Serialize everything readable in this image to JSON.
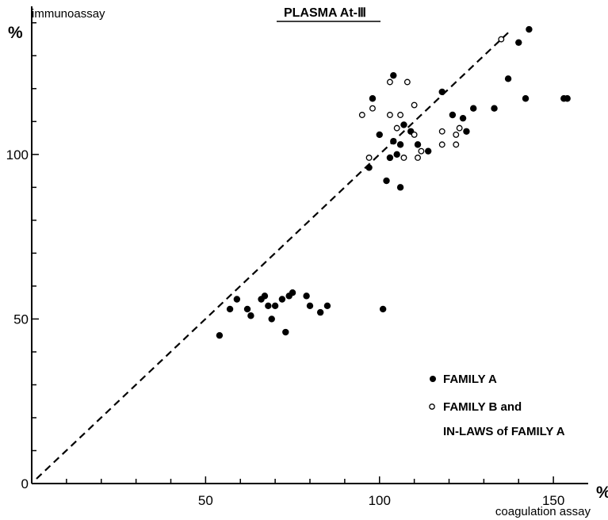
{
  "chart_data": {
    "type": "scatter",
    "title": "PLASMA At-Ⅲ",
    "xlabel": "coagulation assay",
    "ylabel": "immunoassay",
    "x_unit": "%",
    "y_unit": "%",
    "xlim": [
      0,
      160
    ],
    "ylim": [
      0,
      145
    ],
    "x_ticks": [
      "50",
      "100",
      "150"
    ],
    "y_ticks": [
      "0",
      "50",
      "100"
    ],
    "reference_line": {
      "style": "dashed",
      "x": [
        0,
        137
      ],
      "y": [
        0,
        137
      ]
    },
    "series": [
      {
        "name": "FAMILY A",
        "marker": "filled-circle",
        "color": "#000000",
        "points": [
          [
            54,
            45
          ],
          [
            57,
            53
          ],
          [
            59,
            56
          ],
          [
            62,
            53
          ],
          [
            63,
            51
          ],
          [
            66,
            56
          ],
          [
            67,
            57
          ],
          [
            68,
            54
          ],
          [
            69,
            50
          ],
          [
            70,
            54
          ],
          [
            72,
            56
          ],
          [
            73,
            46
          ],
          [
            74,
            57
          ],
          [
            75,
            58
          ],
          [
            79,
            57
          ],
          [
            80,
            54
          ],
          [
            83,
            52
          ],
          [
            85,
            54
          ],
          [
            101,
            53
          ],
          [
            97,
            96
          ],
          [
            98,
            117
          ],
          [
            100,
            106
          ],
          [
            102,
            92
          ],
          [
            103,
            99
          ],
          [
            104,
            104
          ],
          [
            104,
            124
          ],
          [
            105,
            100
          ],
          [
            106,
            103
          ],
          [
            106,
            90
          ],
          [
            107,
            109
          ],
          [
            109,
            107
          ],
          [
            111,
            103
          ],
          [
            114,
            101
          ],
          [
            118,
            119
          ],
          [
            121,
            112
          ],
          [
            124,
            111
          ],
          [
            125,
            107
          ],
          [
            127,
            114
          ],
          [
            133,
            114
          ],
          [
            137,
            123
          ],
          [
            140,
            134
          ],
          [
            142,
            117
          ],
          [
            143,
            138
          ],
          [
            153,
            117
          ],
          [
            154,
            117
          ]
        ]
      },
      {
        "name": "FAMILY B and IN-LAWS of FAMILY A",
        "marker": "open-circle",
        "color": "#000000",
        "points": [
          [
            95,
            112
          ],
          [
            97,
            99
          ],
          [
            98,
            114
          ],
          [
            103,
            112
          ],
          [
            103,
            122
          ],
          [
            105,
            108
          ],
          [
            106,
            112
          ],
          [
            107,
            99
          ],
          [
            108,
            122
          ],
          [
            110,
            106
          ],
          [
            110,
            115
          ],
          [
            111,
            99
          ],
          [
            112,
            101
          ],
          [
            118,
            107
          ],
          [
            118,
            103
          ],
          [
            122,
            103
          ],
          [
            122,
            106
          ],
          [
            123,
            108
          ],
          [
            135,
            135
          ]
        ]
      }
    ],
    "legend": {
      "position": "bottom-right",
      "entries": [
        {
          "marker": "filled-circle",
          "lines": [
            "FAMILY A"
          ]
        },
        {
          "marker": "open-circle",
          "lines": [
            "FAMILY B and",
            "IN-LAWS of FAMILY A"
          ]
        }
      ]
    }
  }
}
